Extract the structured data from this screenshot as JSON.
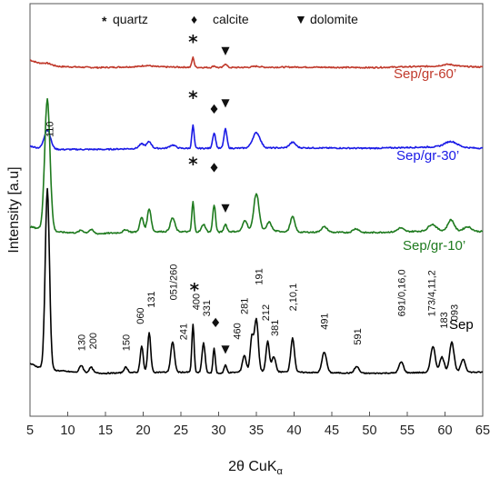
{
  "chart_data": {
    "type": "line",
    "xlabel_main": "2θ CuK",
    "xlabel_sub": "α",
    "ylabel": "Intensity [a.u]",
    "xlim": [
      5,
      65
    ],
    "x_ticks": [
      5,
      10,
      15,
      20,
      25,
      30,
      35,
      40,
      45,
      50,
      55,
      60,
      65
    ],
    "legend": [
      {
        "symbol": "*",
        "label": "quartz"
      },
      {
        "symbol": "♦",
        "label": "calcite"
      },
      {
        "symbol": "▼",
        "label": "dolomite"
      }
    ],
    "series": [
      {
        "name": "Sep/gr-60’",
        "color": "#c0392b",
        "baseline": 0.06,
        "noise": 0.012,
        "background": [
          [
            5,
            0.14
          ],
          [
            6,
            0.09
          ],
          [
            7.3,
            0.05
          ],
          [
            9,
            0.02
          ],
          [
            14,
            0
          ],
          [
            20,
            0.02
          ],
          [
            24,
            0.01
          ],
          [
            30,
            0.0
          ],
          [
            40,
            0.01
          ],
          [
            50,
            0.0
          ],
          [
            60,
            0.03
          ],
          [
            65,
            0.01
          ]
        ],
        "peaks": [
          [
            7.3,
            0.03,
            0.5
          ],
          [
            20.5,
            0.02,
            0.6
          ],
          [
            26.6,
            0.18,
            0.15
          ],
          [
            29.4,
            0.03,
            0.2
          ],
          [
            30.9,
            0.07,
            0.2
          ],
          [
            35,
            0.02,
            0.5
          ],
          [
            60.5,
            0.03,
            0.8
          ]
        ]
      },
      {
        "name": "Sep/gr-30’",
        "color": "#1a1ae6",
        "baseline": 0.06,
        "noise": 0.012,
        "background": [
          [
            5,
            0.06
          ],
          [
            6,
            0.03
          ],
          [
            9,
            0.0
          ],
          [
            15,
            0.0
          ],
          [
            20,
            0.02
          ],
          [
            24,
            0.02
          ],
          [
            30,
            0.02
          ],
          [
            40,
            0.03
          ],
          [
            50,
            0.02
          ],
          [
            60,
            0.05
          ],
          [
            65,
            0.02
          ]
        ],
        "peaks": [
          [
            7.3,
            0.35,
            0.4
          ],
          [
            19.8,
            0.08,
            0.35
          ],
          [
            20.8,
            0.12,
            0.3
          ],
          [
            23.9,
            0.06,
            0.4
          ],
          [
            26.6,
            0.42,
            0.15
          ],
          [
            29.4,
            0.28,
            0.2
          ],
          [
            30.9,
            0.35,
            0.2
          ],
          [
            35,
            0.28,
            0.5
          ],
          [
            39.8,
            0.1,
            0.4
          ],
          [
            60.8,
            0.1,
            0.8
          ]
        ]
      },
      {
        "name": "Sep/gr-10’",
        "color": "#1e7a1e",
        "baseline": 0.06,
        "noise": 0.012,
        "background": [
          [
            5,
            0.15
          ],
          [
            6,
            0.12
          ],
          [
            9,
            0.05
          ],
          [
            14,
            0.02
          ],
          [
            20,
            0.06
          ],
          [
            24,
            0.06
          ],
          [
            30,
            0.05
          ],
          [
            36,
            0.08
          ],
          [
            40,
            0.05
          ],
          [
            50,
            0.04
          ],
          [
            60,
            0.08
          ],
          [
            65,
            0.06
          ]
        ],
        "peaks": [
          [
            7.3,
            2.4,
            0.35
          ],
          [
            11.8,
            0.05,
            0.3
          ],
          [
            13.1,
            0.07,
            0.3
          ],
          [
            17.7,
            0.05,
            0.3
          ],
          [
            19.8,
            0.26,
            0.25
          ],
          [
            20.8,
            0.42,
            0.25
          ],
          [
            23.9,
            0.25,
            0.3
          ],
          [
            26.6,
            0.55,
            0.15
          ],
          [
            28.0,
            0.14,
            0.25
          ],
          [
            29.4,
            0.5,
            0.18
          ],
          [
            30.9,
            0.14,
            0.2
          ],
          [
            33.5,
            0.2,
            0.3
          ],
          [
            35.0,
            0.68,
            0.35
          ],
          [
            36.7,
            0.16,
            0.3
          ],
          [
            39.8,
            0.28,
            0.3
          ],
          [
            44.0,
            0.1,
            0.4
          ],
          [
            48.2,
            0.07,
            0.4
          ],
          [
            54.1,
            0.07,
            0.4
          ],
          [
            58.3,
            0.12,
            0.5
          ],
          [
            60.8,
            0.2,
            0.4
          ],
          [
            63.0,
            0.08,
            0.5
          ]
        ]
      },
      {
        "name": "Sep",
        "color": "#000000",
        "baseline": 0.08,
        "noise": 0.01,
        "background": [
          [
            5,
            0.22
          ],
          [
            6,
            0.16
          ],
          [
            8,
            0.1
          ],
          [
            11,
            0.06
          ],
          [
            15,
            0.04
          ],
          [
            20,
            0.06
          ],
          [
            26,
            0.06
          ],
          [
            30,
            0.04
          ],
          [
            35,
            0.08
          ],
          [
            40,
            0.06
          ],
          [
            50,
            0.04
          ],
          [
            60,
            0.06
          ],
          [
            65,
            0.06
          ]
        ],
        "peaks": [
          [
            7.3,
            3.3,
            0.28
          ],
          [
            11.8,
            0.13,
            0.25
          ],
          [
            13.1,
            0.1,
            0.25
          ],
          [
            17.7,
            0.1,
            0.25
          ],
          [
            19.8,
            0.48,
            0.2
          ],
          [
            20.8,
            0.72,
            0.2
          ],
          [
            23.9,
            0.55,
            0.25
          ],
          [
            26.6,
            0.88,
            0.15
          ],
          [
            28.0,
            0.55,
            0.2
          ],
          [
            29.4,
            0.45,
            0.15
          ],
          [
            30.9,
            0.14,
            0.18
          ],
          [
            33.4,
            0.3,
            0.25
          ],
          [
            34.4,
            0.62,
            0.22
          ],
          [
            35.0,
            0.95,
            0.25
          ],
          [
            36.5,
            0.55,
            0.22
          ],
          [
            37.3,
            0.28,
            0.25
          ],
          [
            39.8,
            0.62,
            0.25
          ],
          [
            44.0,
            0.38,
            0.3
          ],
          [
            48.3,
            0.12,
            0.3
          ],
          [
            54.2,
            0.2,
            0.3
          ],
          [
            58.4,
            0.48,
            0.3
          ],
          [
            59.6,
            0.28,
            0.3
          ],
          [
            60.9,
            0.55,
            0.3
          ],
          [
            62.4,
            0.24,
            0.3
          ]
        ]
      }
    ],
    "peak_labels": [
      {
        "text": "110",
        "x": 7.6,
        "y": 4.45
      },
      {
        "text": "130",
        "x": 11.8,
        "y": 0.53
      },
      {
        "text": "200",
        "x": 13.3,
        "y": 0.56
      },
      {
        "text": "150",
        "x": 17.7,
        "y": 0.53
      },
      {
        "text": "060",
        "x": 19.6,
        "y": 1.02
      },
      {
        "text": "131",
        "x": 21.0,
        "y": 1.32
      },
      {
        "text": "051/260",
        "x": 24.0,
        "y": 1.46
      },
      {
        "text": "241",
        "x": 25.3,
        "y": 0.73
      },
      {
        "text": "400",
        "x": 27.0,
        "y": 1.28
      },
      {
        "text": "331",
        "x": 28.4,
        "y": 1.16
      },
      {
        "text": "460",
        "x": 32.4,
        "y": 0.74
      },
      {
        "text": "281",
        "x": 33.4,
        "y": 1.2
      },
      {
        "text": "191",
        "x": 35.3,
        "y": 1.74
      },
      {
        "text": "212",
        "x": 36.2,
        "y": 1.08
      },
      {
        "text": "381",
        "x": 37.4,
        "y": 0.8
      },
      {
        "text": "2,10,1",
        "x": 39.8,
        "y": 1.26
      },
      {
        "text": "491",
        "x": 44.0,
        "y": 0.92
      },
      {
        "text": "591",
        "x": 48.4,
        "y": 0.64
      },
      {
        "text": "691/0,16,0",
        "x": 54.2,
        "y": 1.16
      },
      {
        "text": "173/4,11,2",
        "x": 58.2,
        "y": 1.16
      },
      {
        "text": "183",
        "x": 59.8,
        "y": 0.94
      },
      {
        "text": "093",
        "x": 61.2,
        "y": 1.08
      }
    ],
    "phase_markers": [
      {
        "symbol": "*",
        "x": 26.6,
        "series": 0,
        "above": 0.34
      },
      {
        "symbol": "▼",
        "x": 30.9,
        "series": 0,
        "above": 0.26
      },
      {
        "symbol": "*",
        "x": 26.6,
        "series": 1,
        "above": 0.56
      },
      {
        "symbol": "♦",
        "x": 29.4,
        "series": 1,
        "above": 0.44
      },
      {
        "symbol": "▼",
        "x": 30.9,
        "series": 1,
        "above": 0.5
      },
      {
        "symbol": "*",
        "x": 26.6,
        "series": 2,
        "above": 0.74
      },
      {
        "symbol": "♦",
        "x": 29.4,
        "series": 2,
        "above": 0.68
      },
      {
        "symbol": "▼",
        "x": 30.9,
        "series": 2,
        "above": 0.32
      },
      {
        "symbol": "*",
        "x": 26.8,
        "series": 3,
        "above": 1.2
      },
      {
        "symbol": "♦",
        "x": 29.6,
        "series": 3,
        "above": 0.74
      },
      {
        "symbol": "▼",
        "x": 30.9,
        "series": 3,
        "above": 0.32
      }
    ]
  }
}
